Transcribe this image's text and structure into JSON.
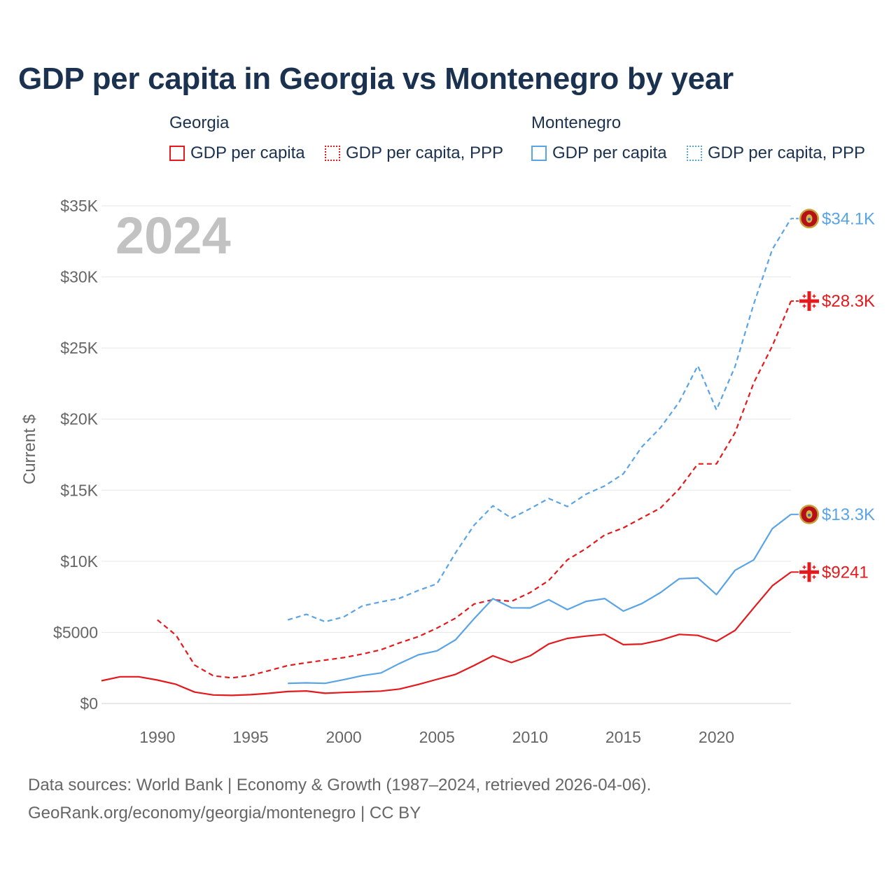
{
  "title": "GDP per capita in Georgia vs Montenegro by year",
  "legend": {
    "georgia": {
      "title": "Georgia",
      "gdp_label": "GDP per capita",
      "ppp_label": "GDP per capita, PPP"
    },
    "montenegro": {
      "title": "Montenegro",
      "gdp_label": "GDP per capita",
      "ppp_label": "GDP per capita, PPP"
    }
  },
  "colors": {
    "georgia": "#e3191c",
    "montenegro": "#5aa4e6",
    "text": "#1a3150",
    "grid": "#e6e6e6"
  },
  "source": {
    "line1": "Data sources: World Bank | Economy & Growth (1987–2024, retrieved 2026-04-06).",
    "line2": "GeoRank.org/economy/georgia/montenegro | CC BY"
  },
  "chart_data": {
    "type": "line",
    "title": "GDP per capita in Georgia vs Montenegro by year",
    "ylabel": "Current $",
    "xlabel": "",
    "year_label": "2024",
    "xlim": [
      1987,
      2024
    ],
    "ylim": [
      0,
      35000
    ],
    "x_ticks": [
      1990,
      1995,
      2000,
      2005,
      2010,
      2015,
      2020
    ],
    "y_ticks": [
      {
        "value": 0,
        "label": "$0"
      },
      {
        "value": 5000,
        "label": "$5000"
      },
      {
        "value": 10000,
        "label": "$10K"
      },
      {
        "value": 15000,
        "label": "$15K"
      },
      {
        "value": 20000,
        "label": "$20K"
      },
      {
        "value": 25000,
        "label": "$25K"
      },
      {
        "value": 30000,
        "label": "$30K"
      },
      {
        "value": 35000,
        "label": "$35K"
      }
    ],
    "series": [
      {
        "name": "Georgia GDP per capita",
        "country": "georgia",
        "style": "solid",
        "end_label": "$9241",
        "x": [
          1987,
          1988,
          1989,
          1990,
          1991,
          1992,
          1993,
          1994,
          1995,
          1996,
          1997,
          1998,
          1999,
          2000,
          2001,
          2002,
          2003,
          2004,
          2005,
          2006,
          2007,
          2008,
          2009,
          2010,
          2011,
          2012,
          2013,
          2014,
          2015,
          2016,
          2017,
          2018,
          2019,
          2020,
          2021,
          2022,
          2023,
          2024
        ],
        "y": [
          1600,
          1880,
          1880,
          1650,
          1350,
          800,
          600,
          570,
          620,
          720,
          840,
          880,
          720,
          780,
          820,
          870,
          1020,
          1340,
          1700,
          2050,
          2680,
          3350,
          2880,
          3350,
          4190,
          4580,
          4740,
          4860,
          4140,
          4180,
          4450,
          4860,
          4790,
          4370,
          5140,
          6730,
          8280,
          9241
        ]
      },
      {
        "name": "Georgia GDP per capita, PPP",
        "country": "georgia",
        "style": "dashed",
        "end_label": "$28.3K",
        "x": [
          1990,
          1991,
          1992,
          1993,
          1994,
          1995,
          1996,
          1997,
          1998,
          1999,
          2000,
          2001,
          2002,
          2003,
          2004,
          2005,
          2006,
          2007,
          2008,
          2009,
          2010,
          2011,
          2012,
          2013,
          2014,
          2015,
          2016,
          2017,
          2018,
          2019,
          2020,
          2021,
          2022,
          2023,
          2024
        ],
        "y": [
          5880,
          4800,
          2700,
          1950,
          1800,
          1980,
          2320,
          2670,
          2870,
          3050,
          3230,
          3480,
          3780,
          4270,
          4700,
          5300,
          6000,
          7000,
          7300,
          7180,
          7800,
          8650,
          10100,
          10900,
          11850,
          12350,
          13050,
          13750,
          15100,
          16850,
          16850,
          19050,
          22550,
          25150,
          28300
        ]
      },
      {
        "name": "Montenegro GDP per capita",
        "country": "montenegro",
        "style": "solid",
        "end_label": "$13.3K",
        "x": [
          1997,
          1998,
          1999,
          2000,
          2001,
          2002,
          2003,
          2004,
          2005,
          2006,
          2007,
          2008,
          2009,
          2010,
          2011,
          2012,
          2013,
          2014,
          2015,
          2016,
          2017,
          2018,
          2019,
          2020,
          2021,
          2022,
          2023,
          2024
        ],
        "y": [
          1420,
          1450,
          1420,
          1680,
          1960,
          2150,
          2820,
          3420,
          3700,
          4480,
          5970,
          7370,
          6730,
          6720,
          7300,
          6600,
          7180,
          7380,
          6500,
          7030,
          7800,
          8770,
          8830,
          7660,
          9370,
          10100,
          12300,
          13300
        ]
      },
      {
        "name": "Montenegro GDP per capita, PPP",
        "country": "montenegro",
        "style": "dashed",
        "end_label": "$34.1K",
        "x": [
          1997,
          1998,
          1999,
          2000,
          2001,
          2002,
          2003,
          2004,
          2005,
          2006,
          2007,
          2008,
          2009,
          2010,
          2011,
          2012,
          2013,
          2014,
          2015,
          2016,
          2017,
          2018,
          2019,
          2020,
          2021,
          2022,
          2023,
          2024
        ],
        "y": [
          5880,
          6270,
          5750,
          6090,
          6860,
          7150,
          7400,
          7950,
          8420,
          10600,
          12550,
          13900,
          13030,
          13700,
          14420,
          13850,
          14720,
          15300,
          16150,
          18050,
          19400,
          21200,
          23750,
          20650,
          23700,
          28100,
          31950,
          34100
        ]
      }
    ]
  }
}
